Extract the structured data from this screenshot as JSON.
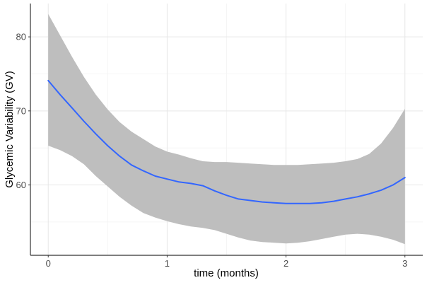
{
  "chart_data": {
    "type": "line",
    "title": "",
    "xlabel": "time (months)",
    "ylabel": "Glycemic Variability (GV)",
    "xlim": [
      -0.15,
      3.15
    ],
    "ylim": [
      50.5,
      84.5
    ],
    "x_ticks": [
      0,
      1,
      2,
      3
    ],
    "x_tick_labels": [
      "0",
      "1",
      "2",
      "3"
    ],
    "y_ticks": [
      60,
      70,
      80
    ],
    "y_tick_labels": [
      "60",
      "70",
      "80"
    ],
    "grid": true,
    "legend": "none",
    "series": [
      {
        "kind": "smooth-line",
        "color": "#3366ff",
        "x": [
          0,
          0.1,
          0.2,
          0.3,
          0.4,
          0.5,
          0.6,
          0.7,
          0.8,
          0.9,
          1.0,
          1.1,
          1.2,
          1.3,
          1.4,
          1.5,
          1.6,
          1.7,
          1.8,
          1.9,
          2.0,
          2.1,
          2.2,
          2.3,
          2.4,
          2.5,
          2.6,
          2.7,
          2.8,
          2.9,
          3.0
        ],
        "y": [
          74.1,
          72.2,
          70.4,
          68.6,
          66.9,
          65.3,
          63.9,
          62.7,
          61.9,
          61.2,
          60.8,
          60.4,
          60.2,
          59.9,
          59.2,
          58.6,
          58.1,
          57.9,
          57.7,
          57.6,
          57.5,
          57.5,
          57.5,
          57.6,
          57.8,
          58.1,
          58.4,
          58.8,
          59.3,
          60.0,
          61.0
        ]
      },
      {
        "kind": "confidence-band",
        "color": "#bebebe",
        "x": [
          0,
          0.1,
          0.2,
          0.3,
          0.4,
          0.5,
          0.6,
          0.7,
          0.8,
          0.9,
          1.0,
          1.1,
          1.2,
          1.3,
          1.4,
          1.5,
          1.6,
          1.7,
          1.8,
          1.9,
          2.0,
          2.1,
          2.2,
          2.3,
          2.4,
          2.5,
          2.6,
          2.7,
          2.8,
          2.9,
          3.0
        ],
        "lower": [
          65.3,
          64.7,
          63.9,
          62.8,
          61.2,
          59.8,
          58.4,
          57.2,
          56.2,
          55.6,
          55.1,
          54.7,
          54.4,
          54.2,
          53.9,
          53.4,
          52.9,
          52.5,
          52.3,
          52.2,
          52.1,
          52.2,
          52.4,
          52.7,
          53.0,
          53.3,
          53.4,
          53.3,
          53.0,
          52.6,
          52.0
        ],
        "upper": [
          83.1,
          80.2,
          77.3,
          74.6,
          72.2,
          70.2,
          68.5,
          67.2,
          66.2,
          65.2,
          64.5,
          64.1,
          63.6,
          63.2,
          63.1,
          63.1,
          63.0,
          62.9,
          62.8,
          62.7,
          62.7,
          62.7,
          62.8,
          62.9,
          63.0,
          63.2,
          63.5,
          64.2,
          65.6,
          67.7,
          70.3
        ]
      }
    ]
  }
}
